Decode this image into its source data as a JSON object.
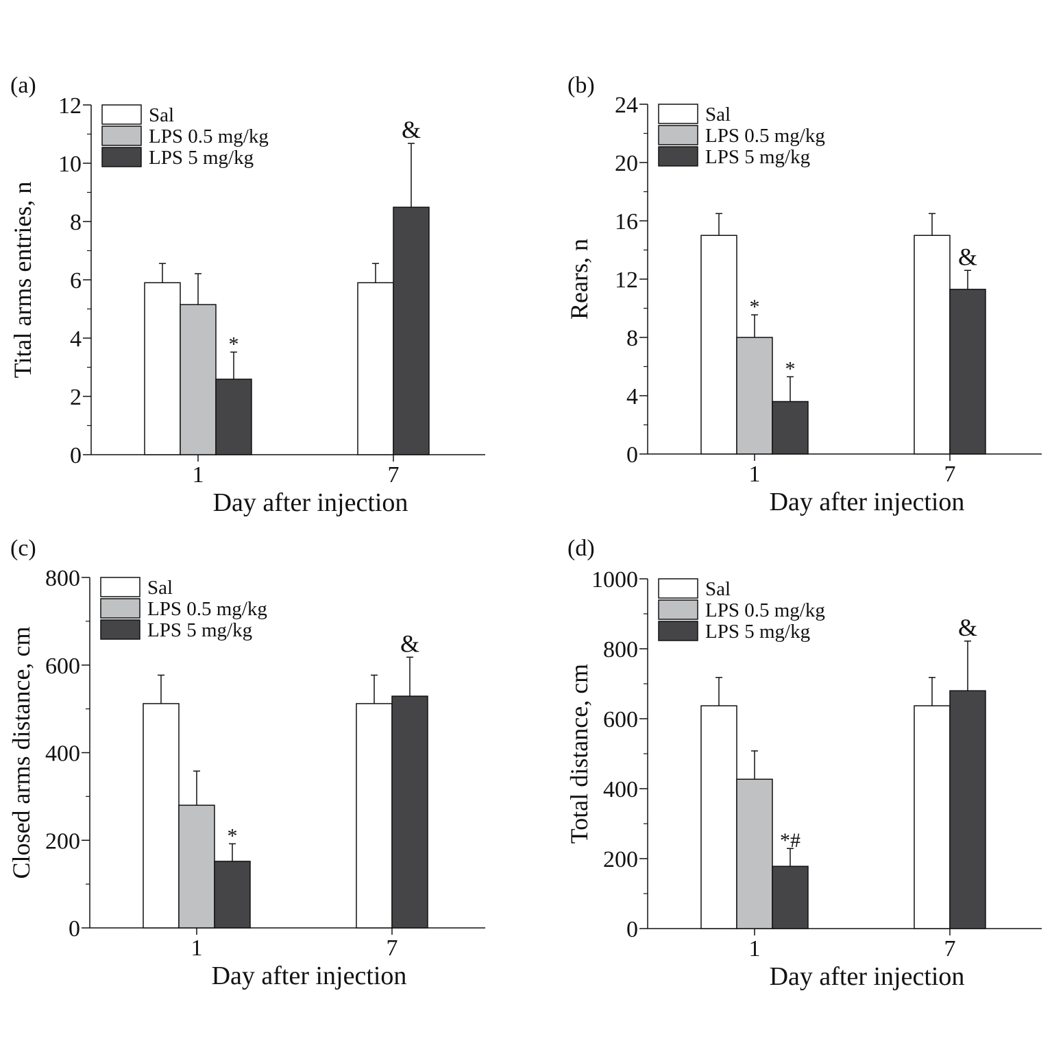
{
  "chart_data": [
    {
      "panel": "(a)",
      "type": "bar",
      "title": "",
      "xlabel": "Day after injection",
      "ylabel": "Tital arms entries, n",
      "categories": [
        "1",
        "7"
      ],
      "ylim": [
        0,
        12
      ],
      "yticks": [
        0,
        2,
        4,
        6,
        8,
        10,
        12
      ],
      "legend_position": "top-left",
      "grid": false,
      "series": [
        {
          "name": "Sal",
          "color": "#ffffff",
          "values": [
            5.9,
            5.9
          ],
          "errors": [
            0.66,
            0.66
          ],
          "annotations": [
            "",
            ""
          ]
        },
        {
          "name": "LPS 0.5 mg/kg",
          "color": "#c0c1c3",
          "values": [
            5.15,
            null
          ],
          "errors": [
            1.06,
            null
          ],
          "annotations": [
            "",
            ""
          ]
        },
        {
          "name": "LPS 5 mg/kg",
          "color": "#454547",
          "values": [
            2.59,
            8.49
          ],
          "errors": [
            0.93,
            2.19
          ],
          "annotations": [
            "*",
            "&"
          ]
        }
      ]
    },
    {
      "panel": "(b)",
      "type": "bar",
      "title": "",
      "xlabel": "Day after injection",
      "ylabel": "Rears, n",
      "categories": [
        "1",
        "7"
      ],
      "ylim": [
        0,
        24
      ],
      "yticks": [
        0,
        4,
        8,
        12,
        16,
        20,
        24
      ],
      "legend_position": "top-left",
      "grid": false,
      "series": [
        {
          "name": "Sal",
          "color": "#ffffff",
          "values": [
            15.0,
            15.0
          ],
          "errors": [
            1.5,
            1.5
          ],
          "annotations": [
            "",
            ""
          ]
        },
        {
          "name": "LPS 0.5 mg/kg",
          "color": "#c0c1c3",
          "values": [
            8.0,
            null
          ],
          "errors": [
            1.55,
            null
          ],
          "annotations": [
            "*",
            ""
          ]
        },
        {
          "name": "LPS 5 mg/kg",
          "color": "#454547",
          "values": [
            3.6,
            11.3
          ],
          "errors": [
            1.7,
            1.3
          ],
          "annotations": [
            "*",
            "&"
          ]
        }
      ]
    },
    {
      "panel": "(c)",
      "type": "bar",
      "title": "",
      "xlabel": "Day after injection",
      "ylabel": "Closed arms distance, cm",
      "categories": [
        "1",
        "7"
      ],
      "ylim": [
        0,
        800
      ],
      "yticks": [
        0,
        200,
        400,
        600,
        800
      ],
      "legend_position": "top-left",
      "grid": false,
      "series": [
        {
          "name": "Sal",
          "color": "#ffffff",
          "values": [
            512,
            512
          ],
          "errors": [
            65,
            65
          ],
          "annotations": [
            "",
            ""
          ]
        },
        {
          "name": "LPS 0.5 mg/kg",
          "color": "#c0c1c3",
          "values": [
            280,
            null
          ],
          "errors": [
            78,
            null
          ],
          "annotations": [
            "",
            ""
          ]
        },
        {
          "name": "LPS 5 mg/kg",
          "color": "#454547",
          "values": [
            152,
            529
          ],
          "errors": [
            40,
            89
          ],
          "annotations": [
            "*",
            "&"
          ]
        }
      ]
    },
    {
      "panel": "(d)",
      "type": "bar",
      "title": "",
      "xlabel": "Day after injection",
      "ylabel": "Total distance, cm",
      "categories": [
        "1",
        "7"
      ],
      "ylim": [
        0,
        1000
      ],
      "yticks": [
        0,
        200,
        400,
        600,
        800,
        1000
      ],
      "legend_position": "top-left",
      "grid": false,
      "series": [
        {
          "name": "Sal",
          "color": "#ffffff",
          "values": [
            637,
            637
          ],
          "errors": [
            81,
            81
          ],
          "annotations": [
            "",
            ""
          ]
        },
        {
          "name": "LPS 0.5 mg/kg",
          "color": "#c0c1c3",
          "values": [
            427,
            null
          ],
          "errors": [
            81,
            null
          ],
          "annotations": [
            "",
            ""
          ]
        },
        {
          "name": "LPS 5 mg/kg",
          "color": "#454547",
          "values": [
            178,
            680
          ],
          "errors": [
            51,
            142
          ],
          "annotations": [
            "*#",
            "&"
          ]
        }
      ]
    }
  ]
}
